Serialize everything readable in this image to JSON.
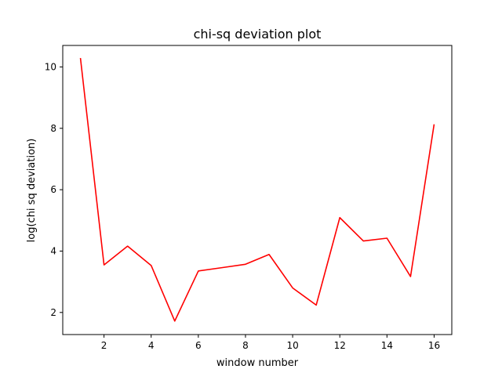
{
  "chart_data": {
    "type": "line",
    "title": "chi-sq deviation plot",
    "xlabel": "window number",
    "ylabel": "log(chi sq deviation)",
    "xlim": [
      0.25,
      16.75
    ],
    "ylim": [
      1.28,
      10.7
    ],
    "x_ticks": [
      2,
      4,
      6,
      8,
      10,
      12,
      14,
      16
    ],
    "y_ticks": [
      2,
      4,
      6,
      8,
      10
    ],
    "grid": false,
    "series": [
      {
        "color": "#ff0000",
        "x": [
          1,
          2,
          3,
          4,
          5,
          6,
          7,
          8,
          9,
          10,
          11,
          12,
          13,
          14,
          15,
          16
        ],
        "y": [
          10.29,
          3.55,
          4.16,
          3.53,
          1.72,
          3.35,
          3.46,
          3.57,
          3.89,
          2.8,
          2.24,
          5.09,
          4.33,
          4.42,
          3.17,
          8.13
        ]
      }
    ]
  }
}
